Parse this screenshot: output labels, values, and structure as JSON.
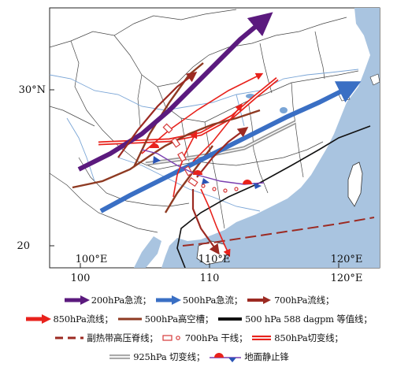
{
  "axes": {
    "lat_labels": [
      "30°N",
      "20"
    ],
    "lon_labels_bottom": [
      "100",
      "110",
      "120°E"
    ],
    "lon_labels_inner": [
      "100°E",
      "110°E",
      "120°E"
    ]
  },
  "legend": {
    "items": [
      {
        "label": "200hPa急流；",
        "symbol": "purple-arrow",
        "color": "#5b1a7e"
      },
      {
        "label": "500hPa急流；",
        "symbol": "blue-arrow",
        "color": "#3a6fc4"
      },
      {
        "label": "700hPa流线；",
        "symbol": "darkred-arrow",
        "color": "#9c2a22"
      },
      {
        "label": "850hPa流线；",
        "symbol": "red-arrow",
        "color": "#e8221c"
      },
      {
        "label": "500hPa高空槽；",
        "symbol": "brown-line",
        "color": "#8e3a22"
      },
      {
        "label": "500 hPa 588 dagpm 等值线；",
        "symbol": "black-line",
        "color": "#111111"
      },
      {
        "label": "副热带高压脊线；",
        "symbol": "dashed-line",
        "color": "#9c2a22"
      },
      {
        "label": "700hPa 干线；",
        "symbol": "circle-line",
        "color": "#d63a3a"
      },
      {
        "label": "850hPa切变线；",
        "symbol": "double-line",
        "color": "#e8221c"
      },
      {
        "label": "925hPa 切变线；",
        "symbol": "gray-double-line",
        "color": "#aaaaaa"
      },
      {
        "label": "地面静止锋",
        "symbol": "front-icon",
        "color": "#e8221c"
      }
    ]
  }
}
